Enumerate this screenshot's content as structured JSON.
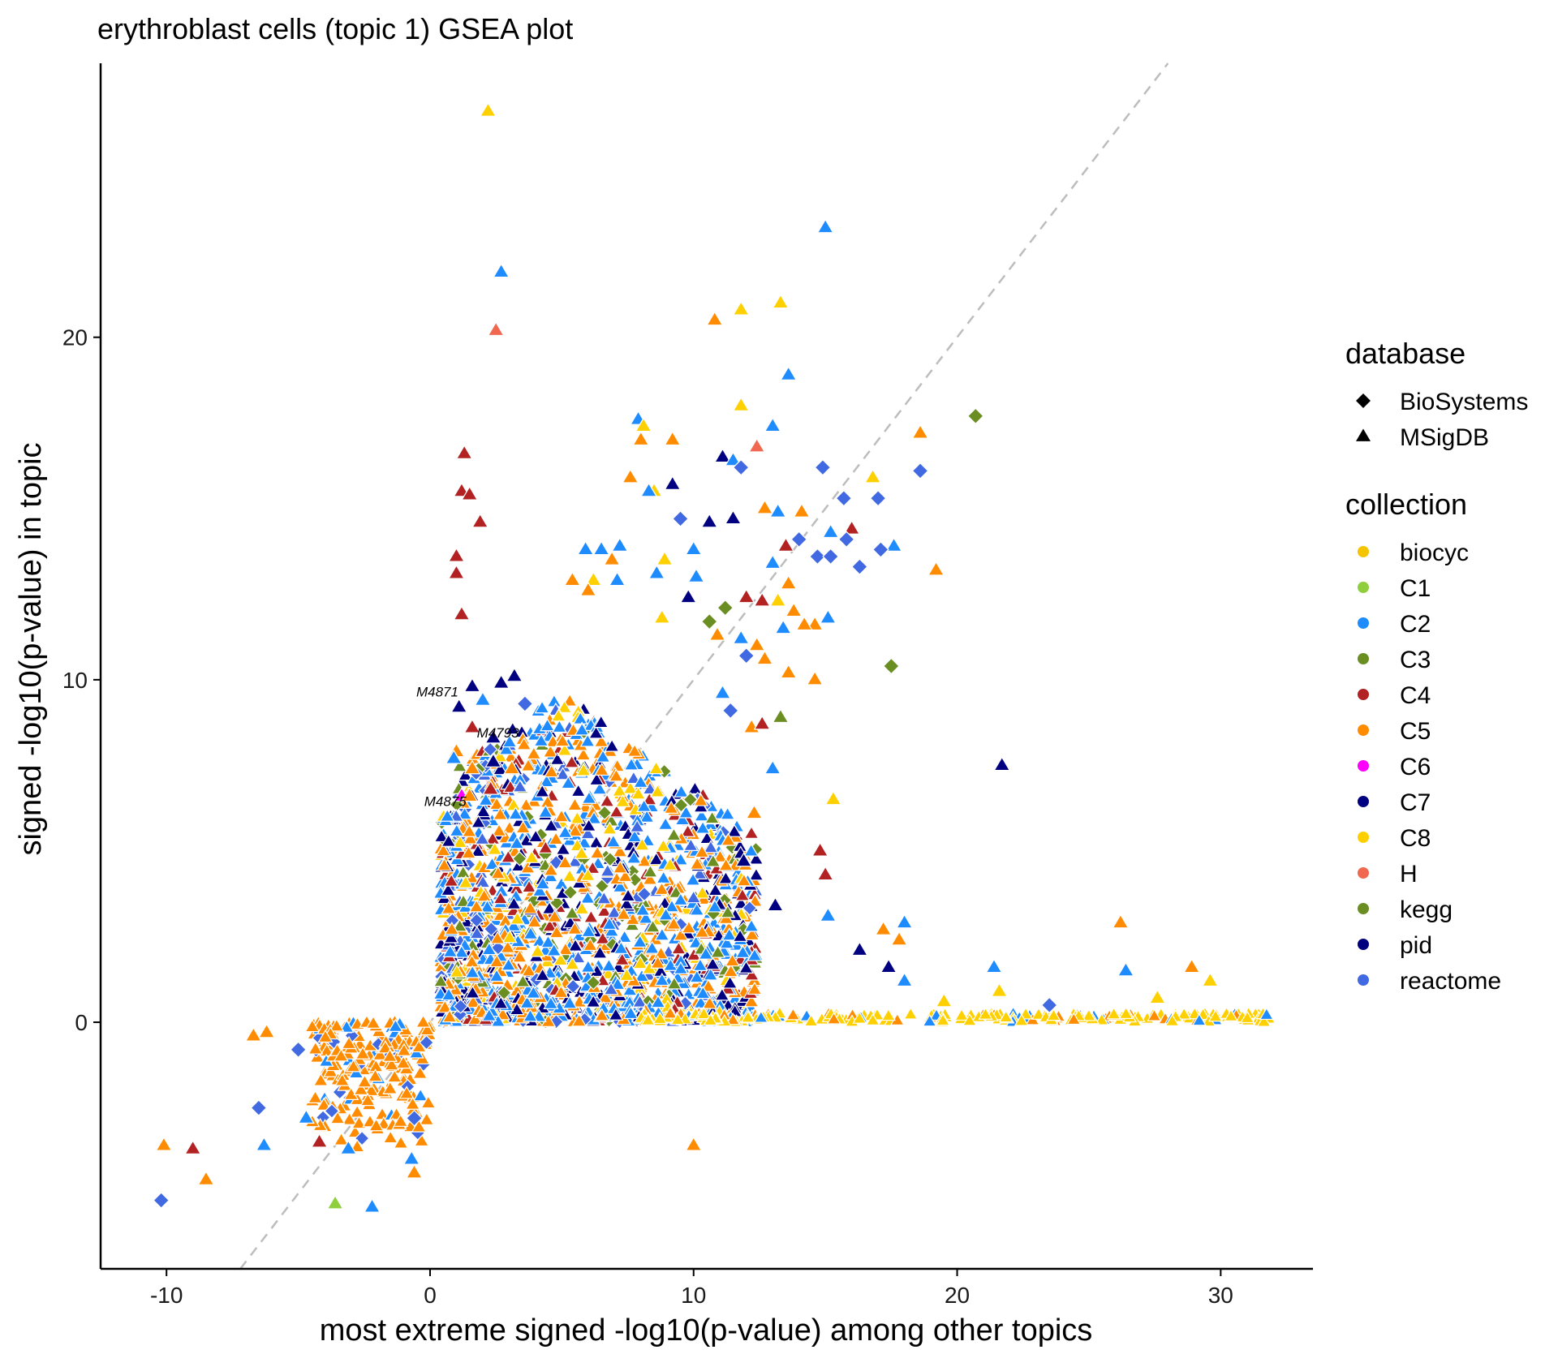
{
  "chart_data": {
    "type": "scatter",
    "title": "erythroblast cells (topic 1) GSEA plot",
    "xlabel": "most extreme signed -log10(p-value) among other topics",
    "ylabel": "signed -log10(p-value) in topic",
    "xlim": [
      -12.5,
      33.5
    ],
    "ylim": [
      -7.2,
      28.0
    ],
    "x_ticks": [
      -10,
      0,
      10,
      20,
      30
    ],
    "y_ticks": [
      0,
      10,
      20
    ],
    "grid": false,
    "reference_line": {
      "type": "identity",
      "style": "dashed",
      "color": "#bdbdbd"
    },
    "legend_position": "right",
    "legend": {
      "database": {
        "title": "database",
        "items": [
          {
            "label": "BioSystems",
            "shape": "diamond"
          },
          {
            "label": "MSigDB",
            "shape": "triangle"
          }
        ]
      },
      "collection": {
        "title": "collection",
        "items": [
          {
            "label": "biocyc",
            "color": "#f5c400"
          },
          {
            "label": "C1",
            "color": "#8fce3c"
          },
          {
            "label": "C2",
            "color": "#1e8cff"
          },
          {
            "label": "C3",
            "color": "#6b8e23"
          },
          {
            "label": "C4",
            "color": "#b22222"
          },
          {
            "label": "C5",
            "color": "#ff8c00"
          },
          {
            "label": "C6",
            "color": "#ff00ff"
          },
          {
            "label": "C7",
            "color": "#000080"
          },
          {
            "label": "C8",
            "color": "#ffd000"
          },
          {
            "label": "H",
            "color": "#f0684f"
          },
          {
            "label": "kegg",
            "color": "#6b8e23"
          },
          {
            "label": "pid",
            "color": "#00007f"
          },
          {
            "label": "reactome",
            "color": "#4169e1"
          }
        ]
      }
    },
    "labeled_points": [
      {
        "label": "M4871",
        "x": 1.2,
        "y": 9.7
      },
      {
        "label": "M4793",
        "x": 3.5,
        "y": 8.5
      },
      {
        "label": "M4875",
        "x": 1.5,
        "y": 6.5
      }
    ],
    "points": [
      {
        "x": 2.2,
        "y": 26.6,
        "c": "C8",
        "s": "triangle"
      },
      {
        "x": 15.0,
        "y": 23.2,
        "c": "C2",
        "s": "triangle"
      },
      {
        "x": 2.7,
        "y": 21.9,
        "c": "C2",
        "s": "triangle"
      },
      {
        "x": 2.5,
        "y": 20.2,
        "c": "H",
        "s": "triangle"
      },
      {
        "x": 13.3,
        "y": 21.0,
        "c": "C8",
        "s": "triangle"
      },
      {
        "x": 11.8,
        "y": 20.8,
        "c": "C8",
        "s": "triangle"
      },
      {
        "x": 10.8,
        "y": 20.5,
        "c": "C5",
        "s": "triangle"
      },
      {
        "x": 13.6,
        "y": 18.9,
        "c": "C2",
        "s": "triangle"
      },
      {
        "x": 11.8,
        "y": 18.0,
        "c": "C8",
        "s": "triangle"
      },
      {
        "x": 20.7,
        "y": 17.7,
        "c": "kegg",
        "s": "diamond"
      },
      {
        "x": 7.9,
        "y": 17.6,
        "c": "C2",
        "s": "triangle"
      },
      {
        "x": 8.1,
        "y": 17.4,
        "c": "C8",
        "s": "triangle"
      },
      {
        "x": 13.0,
        "y": 17.4,
        "c": "C2",
        "s": "triangle"
      },
      {
        "x": 18.6,
        "y": 17.2,
        "c": "C5",
        "s": "triangle"
      },
      {
        "x": 8.0,
        "y": 17.0,
        "c": "C5",
        "s": "triangle"
      },
      {
        "x": 9.2,
        "y": 17.0,
        "c": "C5",
        "s": "triangle"
      },
      {
        "x": 12.4,
        "y": 16.8,
        "c": "H",
        "s": "triangle"
      },
      {
        "x": 1.3,
        "y": 16.6,
        "c": "C4",
        "s": "triangle"
      },
      {
        "x": 11.1,
        "y": 16.5,
        "c": "C7",
        "s": "triangle"
      },
      {
        "x": 11.5,
        "y": 16.4,
        "c": "C2",
        "s": "triangle"
      },
      {
        "x": 14.9,
        "y": 16.2,
        "c": "reactome",
        "s": "diamond"
      },
      {
        "x": 11.8,
        "y": 16.2,
        "c": "reactome",
        "s": "diamond"
      },
      {
        "x": 18.6,
        "y": 16.1,
        "c": "reactome",
        "s": "diamond"
      },
      {
        "x": 16.8,
        "y": 15.9,
        "c": "C8",
        "s": "triangle"
      },
      {
        "x": 7.6,
        "y": 15.9,
        "c": "C5",
        "s": "triangle"
      },
      {
        "x": 9.2,
        "y": 15.7,
        "c": "C7",
        "s": "triangle"
      },
      {
        "x": 1.2,
        "y": 15.5,
        "c": "C4",
        "s": "triangle"
      },
      {
        "x": 1.5,
        "y": 15.4,
        "c": "C4",
        "s": "triangle"
      },
      {
        "x": 8.5,
        "y": 15.5,
        "c": "C8",
        "s": "triangle"
      },
      {
        "x": 8.3,
        "y": 15.5,
        "c": "C2",
        "s": "triangle"
      },
      {
        "x": 15.7,
        "y": 15.3,
        "c": "reactome",
        "s": "diamond"
      },
      {
        "x": 17.0,
        "y": 15.3,
        "c": "reactome",
        "s": "diamond"
      },
      {
        "x": 12.7,
        "y": 15.0,
        "c": "C5",
        "s": "triangle"
      },
      {
        "x": 13.2,
        "y": 14.9,
        "c": "C2",
        "s": "triangle"
      },
      {
        "x": 11.5,
        "y": 14.7,
        "c": "C7",
        "s": "triangle"
      },
      {
        "x": 14.1,
        "y": 14.9,
        "c": "C5",
        "s": "triangle"
      },
      {
        "x": 9.5,
        "y": 14.7,
        "c": "reactome",
        "s": "diamond"
      },
      {
        "x": 1.9,
        "y": 14.6,
        "c": "C4",
        "s": "triangle"
      },
      {
        "x": 10.6,
        "y": 14.6,
        "c": "C7",
        "s": "triangle"
      },
      {
        "x": 15.2,
        "y": 14.3,
        "c": "C2",
        "s": "triangle"
      },
      {
        "x": 16.0,
        "y": 14.4,
        "c": "C4",
        "s": "triangle"
      },
      {
        "x": 14.0,
        "y": 14.1,
        "c": "reactome",
        "s": "diamond"
      },
      {
        "x": 15.8,
        "y": 14.1,
        "c": "reactome",
        "s": "diamond"
      },
      {
        "x": 17.6,
        "y": 13.9,
        "c": "C2",
        "s": "triangle"
      },
      {
        "x": 13.5,
        "y": 13.9,
        "c": "C4",
        "s": "triangle"
      },
      {
        "x": 17.1,
        "y": 13.8,
        "c": "reactome",
        "s": "diamond"
      },
      {
        "x": 14.7,
        "y": 13.6,
        "c": "reactome",
        "s": "diamond"
      },
      {
        "x": 15.2,
        "y": 13.6,
        "c": "reactome",
        "s": "diamond"
      },
      {
        "x": 6.5,
        "y": 13.8,
        "c": "C2",
        "s": "triangle"
      },
      {
        "x": 5.9,
        "y": 13.8,
        "c": "C2",
        "s": "triangle"
      },
      {
        "x": 7.2,
        "y": 13.9,
        "c": "C2",
        "s": "triangle"
      },
      {
        "x": 10.0,
        "y": 13.8,
        "c": "C2",
        "s": "triangle"
      },
      {
        "x": 1.0,
        "y": 13.6,
        "c": "C4",
        "s": "triangle"
      },
      {
        "x": 6.9,
        "y": 13.5,
        "c": "C5",
        "s": "triangle"
      },
      {
        "x": 8.9,
        "y": 13.5,
        "c": "C8",
        "s": "triangle"
      },
      {
        "x": 13.0,
        "y": 13.4,
        "c": "C2",
        "s": "triangle"
      },
      {
        "x": 16.3,
        "y": 13.3,
        "c": "reactome",
        "s": "diamond"
      },
      {
        "x": 19.2,
        "y": 13.2,
        "c": "C5",
        "s": "triangle"
      },
      {
        "x": 1.0,
        "y": 13.1,
        "c": "C4",
        "s": "triangle"
      },
      {
        "x": 8.6,
        "y": 13.1,
        "c": "C2",
        "s": "triangle"
      },
      {
        "x": 10.1,
        "y": 13.0,
        "c": "C2",
        "s": "triangle"
      },
      {
        "x": 5.4,
        "y": 12.9,
        "c": "C5",
        "s": "triangle"
      },
      {
        "x": 6.2,
        "y": 12.9,
        "c": "C8",
        "s": "triangle"
      },
      {
        "x": 7.1,
        "y": 12.9,
        "c": "C2",
        "s": "triangle"
      },
      {
        "x": 13.6,
        "y": 12.8,
        "c": "C5",
        "s": "triangle"
      },
      {
        "x": 6.0,
        "y": 12.6,
        "c": "C5",
        "s": "triangle"
      },
      {
        "x": 9.8,
        "y": 12.4,
        "c": "C7",
        "s": "triangle"
      },
      {
        "x": 12.0,
        "y": 12.4,
        "c": "C4",
        "s": "triangle"
      },
      {
        "x": 12.6,
        "y": 12.3,
        "c": "C4",
        "s": "triangle"
      },
      {
        "x": 13.2,
        "y": 12.3,
        "c": "C8",
        "s": "triangle"
      },
      {
        "x": 11.2,
        "y": 12.1,
        "c": "kegg",
        "s": "diamond"
      },
      {
        "x": 13.8,
        "y": 12.0,
        "c": "C5",
        "s": "triangle"
      },
      {
        "x": 1.2,
        "y": 11.9,
        "c": "C4",
        "s": "triangle"
      },
      {
        "x": 8.8,
        "y": 11.8,
        "c": "C8",
        "s": "triangle"
      },
      {
        "x": 10.6,
        "y": 11.7,
        "c": "kegg",
        "s": "diamond"
      },
      {
        "x": 15.1,
        "y": 11.8,
        "c": "C2",
        "s": "triangle"
      },
      {
        "x": 14.6,
        "y": 11.6,
        "c": "C5",
        "s": "triangle"
      },
      {
        "x": 14.2,
        "y": 11.6,
        "c": "C5",
        "s": "triangle"
      },
      {
        "x": 13.4,
        "y": 11.5,
        "c": "C2",
        "s": "triangle"
      },
      {
        "x": 11.8,
        "y": 11.2,
        "c": "C2",
        "s": "triangle"
      },
      {
        "x": 10.9,
        "y": 11.3,
        "c": "C5",
        "s": "triangle"
      },
      {
        "x": 12.4,
        "y": 11.0,
        "c": "C5",
        "s": "triangle"
      },
      {
        "x": 12.0,
        "y": 10.7,
        "c": "reactome",
        "s": "diamond"
      },
      {
        "x": 17.5,
        "y": 10.4,
        "c": "kegg",
        "s": "diamond"
      },
      {
        "x": 12.7,
        "y": 10.6,
        "c": "C5",
        "s": "triangle"
      },
      {
        "x": 13.6,
        "y": 10.2,
        "c": "C5",
        "s": "triangle"
      },
      {
        "x": 1.6,
        "y": 9.8,
        "c": "C7",
        "s": "triangle"
      },
      {
        "x": 3.2,
        "y": 10.1,
        "c": "C7",
        "s": "triangle"
      },
      {
        "x": 2.7,
        "y": 9.9,
        "c": "C7",
        "s": "triangle"
      },
      {
        "x": 1.1,
        "y": 9.2,
        "c": "C7",
        "s": "triangle"
      },
      {
        "x": 2.0,
        "y": 9.4,
        "c": "C2",
        "s": "triangle"
      },
      {
        "x": 3.6,
        "y": 9.3,
        "c": "reactome",
        "s": "diamond"
      },
      {
        "x": 1.6,
        "y": 8.6,
        "c": "C4",
        "s": "triangle"
      },
      {
        "x": 2.4,
        "y": 8.3,
        "c": "C7",
        "s": "triangle"
      },
      {
        "x": 1.0,
        "y": 7.9,
        "c": "C5",
        "s": "triangle"
      },
      {
        "x": 0.9,
        "y": 7.7,
        "c": "C2",
        "s": "triangle"
      },
      {
        "x": 2.4,
        "y": 7.6,
        "c": "C7",
        "s": "triangle"
      },
      {
        "x": 3.1,
        "y": 7.4,
        "c": "C5",
        "s": "triangle"
      },
      {
        "x": 1.6,
        "y": 7.4,
        "c": "C5",
        "s": "triangle"
      },
      {
        "x": 1.2,
        "y": 6.6,
        "c": "C6",
        "s": "triangle"
      },
      {
        "x": 1.5,
        "y": 6.6,
        "c": "C5",
        "s": "triangle"
      },
      {
        "x": 2.3,
        "y": 6.8,
        "c": "C4",
        "s": "triangle"
      },
      {
        "x": 14.6,
        "y": 10.0,
        "c": "C5",
        "s": "triangle"
      },
      {
        "x": 11.1,
        "y": 9.6,
        "c": "C2",
        "s": "triangle"
      },
      {
        "x": 11.4,
        "y": 9.1,
        "c": "reactome",
        "s": "diamond"
      },
      {
        "x": 13.3,
        "y": 8.9,
        "c": "kegg",
        "s": "triangle"
      },
      {
        "x": 12.2,
        "y": 8.6,
        "c": "C5",
        "s": "triangle"
      },
      {
        "x": 12.6,
        "y": 8.7,
        "c": "C4",
        "s": "triangle"
      },
      {
        "x": 21.7,
        "y": 7.5,
        "c": "C7",
        "s": "triangle"
      },
      {
        "x": 13.0,
        "y": 7.4,
        "c": "C2",
        "s": "triangle"
      },
      {
        "x": 15.3,
        "y": 6.5,
        "c": "C8",
        "s": "triangle"
      },
      {
        "x": 12.3,
        "y": 6.1,
        "c": "C5",
        "s": "triangle"
      },
      {
        "x": 14.8,
        "y": 5.0,
        "c": "C4",
        "s": "triangle"
      },
      {
        "x": 15.0,
        "y": 4.3,
        "c": "C4",
        "s": "triangle"
      },
      {
        "x": 11.9,
        "y": 4.7,
        "c": "C7",
        "s": "triangle"
      },
      {
        "x": 13.1,
        "y": 3.4,
        "c": "C7",
        "s": "triangle"
      },
      {
        "x": 15.1,
        "y": 3.1,
        "c": "C2",
        "s": "triangle"
      },
      {
        "x": 18.0,
        "y": 2.9,
        "c": "C2",
        "s": "triangle"
      },
      {
        "x": 17.2,
        "y": 2.7,
        "c": "C5",
        "s": "triangle"
      },
      {
        "x": 26.2,
        "y": 2.9,
        "c": "C5",
        "s": "triangle"
      },
      {
        "x": 17.8,
        "y": 2.4,
        "c": "C5",
        "s": "triangle"
      },
      {
        "x": 16.3,
        "y": 2.1,
        "c": "C7",
        "s": "triangle"
      },
      {
        "x": 17.4,
        "y": 1.6,
        "c": "C7",
        "s": "triangle"
      },
      {
        "x": 28.9,
        "y": 1.6,
        "c": "C5",
        "s": "triangle"
      },
      {
        "x": 21.4,
        "y": 1.6,
        "c": "C2",
        "s": "triangle"
      },
      {
        "x": 26.4,
        "y": 1.5,
        "c": "C2",
        "s": "triangle"
      },
      {
        "x": 29.6,
        "y": 1.2,
        "c": "C8",
        "s": "triangle"
      },
      {
        "x": 18.0,
        "y": 1.2,
        "c": "C2",
        "s": "triangle"
      },
      {
        "x": 21.6,
        "y": 0.9,
        "c": "C8",
        "s": "triangle"
      },
      {
        "x": 27.6,
        "y": 0.7,
        "c": "C8",
        "s": "triangle"
      },
      {
        "x": 23.5,
        "y": 0.5,
        "c": "reactome",
        "s": "diamond"
      },
      {
        "x": 19.5,
        "y": 0.6,
        "c": "C8",
        "s": "triangle"
      },
      {
        "x": 10.0,
        "y": -3.6,
        "c": "C5",
        "s": "triangle"
      },
      {
        "x": -10.1,
        "y": -3.6,
        "c": "C5",
        "s": "triangle"
      },
      {
        "x": -9.0,
        "y": -3.7,
        "c": "C4",
        "s": "triangle"
      },
      {
        "x": -8.5,
        "y": -4.6,
        "c": "C5",
        "s": "triangle"
      },
      {
        "x": -10.2,
        "y": -5.2,
        "c": "reactome",
        "s": "diamond"
      },
      {
        "x": -3.6,
        "y": -5.3,
        "c": "C1",
        "s": "triangle"
      },
      {
        "x": -2.2,
        "y": -5.4,
        "c": "C2",
        "s": "triangle"
      },
      {
        "x": -6.5,
        "y": -2.5,
        "c": "reactome",
        "s": "diamond"
      },
      {
        "x": -5.0,
        "y": -0.8,
        "c": "reactome",
        "s": "diamond"
      },
      {
        "x": -6.2,
        "y": -0.3,
        "c": "C5",
        "s": "triangle"
      },
      {
        "x": -6.7,
        "y": -0.4,
        "c": "C5",
        "s": "triangle"
      },
      {
        "x": -6.3,
        "y": -3.6,
        "c": "C2",
        "s": "triangle"
      },
      {
        "x": -4.2,
        "y": -3.5,
        "c": "C4",
        "s": "triangle"
      },
      {
        "x": -4.7,
        "y": -2.8,
        "c": "C2",
        "s": "triangle"
      },
      {
        "x": -3.1,
        "y": -3.7,
        "c": "C2",
        "s": "triangle"
      },
      {
        "x": -0.6,
        "y": -2.8,
        "c": "reactome",
        "s": "diamond"
      },
      {
        "x": -0.7,
        "y": -4.0,
        "c": "C2",
        "s": "triangle"
      },
      {
        "x": -0.6,
        "y": -4.4,
        "c": "C5",
        "s": "triangle"
      }
    ]
  }
}
